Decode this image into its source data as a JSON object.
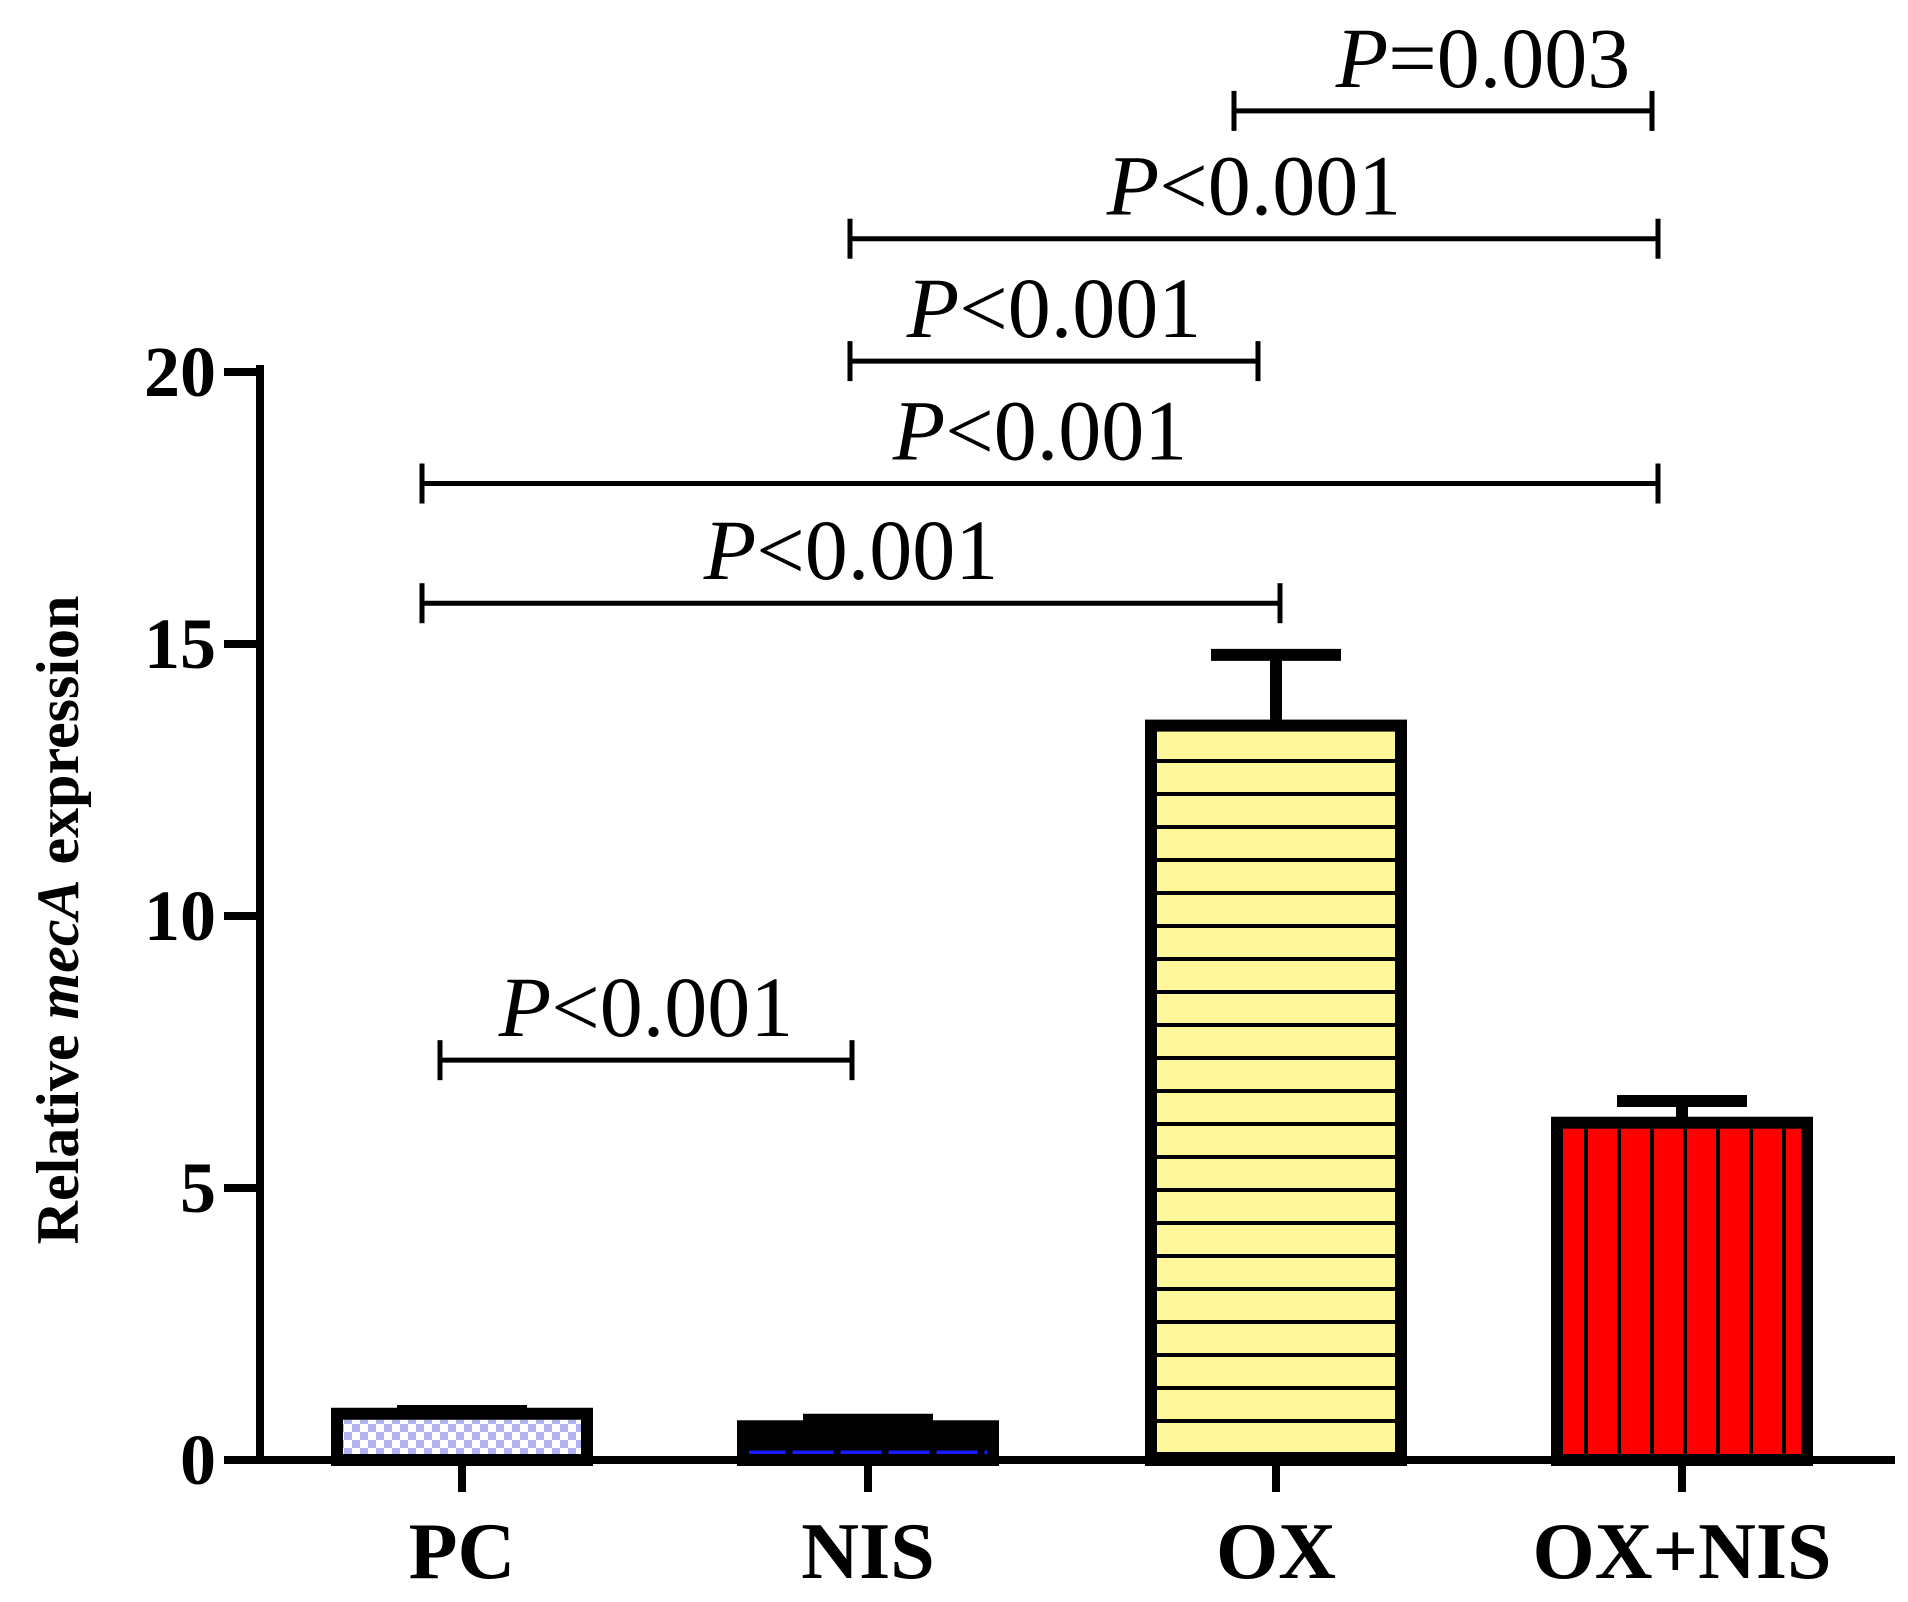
{
  "chart_data": {
    "type": "bar",
    "title": "",
    "xlabel": "",
    "ylabel": {
      "prefix": "Relative ",
      "gene": "mecA",
      "suffix": " expression"
    },
    "ylim": [
      0,
      20
    ],
    "yticks": [
      0,
      5,
      10,
      15,
      20
    ],
    "categories": [
      "PC",
      "NIS",
      "OX",
      "OX+NIS"
    ],
    "values": [
      0.85,
      0.62,
      13.5,
      6.2
    ],
    "errors": [
      0.05,
      0.12,
      1.3,
      0.4
    ],
    "bar_styles": [
      {
        "pattern": "checker",
        "fill": "#b3b3f0",
        "accent": "#ffffff"
      },
      {
        "pattern": "wave",
        "fill": "#000000",
        "accent": "#1a1aff"
      },
      {
        "pattern": "hlines",
        "fill": "#fff89a",
        "accent": "#000000"
      },
      {
        "pattern": "vlines",
        "fill": "#ff0000",
        "accent": "#000000"
      }
    ],
    "comparisons": [
      {
        "from": 0,
        "to": 1,
        "level": 7.35,
        "p": "P",
        "op": "<",
        "val": "0.001"
      },
      {
        "from": 0,
        "to": 2,
        "level": 15.75,
        "p": "P",
        "op": "<",
        "val": "0.001"
      },
      {
        "from": 0,
        "to": 3,
        "level": 17.95,
        "p": "P",
        "op": "<",
        "val": "0.001"
      },
      {
        "from": 1,
        "to": 2,
        "level": 20.2,
        "p": "P",
        "op": "<",
        "val": "0.001"
      },
      {
        "from": 1,
        "to": 3,
        "level": 22.45,
        "p": "P",
        "op": "<",
        "val": "0.001"
      },
      {
        "from": 2,
        "to": 3,
        "level": 24.8,
        "p": "P",
        "op": "=",
        "val": "0.003"
      }
    ]
  }
}
